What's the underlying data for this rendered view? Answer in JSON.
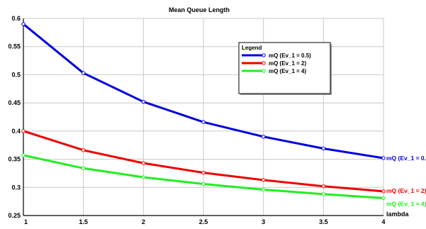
{
  "chart_data": {
    "type": "line",
    "title": "Mean Queue Length",
    "xlabel": "lambda",
    "ylabel": "",
    "xlim": [
      1,
      4
    ],
    "ylim": [
      0.25,
      0.6
    ],
    "x_ticks": [
      "1",
      "1.5",
      "2",
      "2.5",
      "3",
      "3.5",
      "4"
    ],
    "y_ticks": [
      "0.25",
      "0.3",
      "0.35",
      "0.4",
      "0.45",
      "0.5",
      "0.55",
      "0.6"
    ],
    "grid": true,
    "legend": {
      "title": "Legend",
      "position": "top-right"
    },
    "x": [
      1,
      1.5,
      2,
      2.5,
      3,
      3.5,
      4
    ],
    "series": [
      {
        "name": "mQ (Ev_1 = 0.5)",
        "end_label": "mQ (Ev_1 = 0.5",
        "color": "#0000dd",
        "values": [
          0.59,
          0.503,
          0.452,
          0.416,
          0.39,
          0.369,
          0.352
        ]
      },
      {
        "name": "mQ (Ev_1 = 2)",
        "end_label": "mQ (Ev_1 = 2)",
        "color": "#ee0000",
        "values": [
          0.4,
          0.366,
          0.343,
          0.326,
          0.313,
          0.302,
          0.293
        ]
      },
      {
        "name": "mQ (Ev_1 = 4)",
        "end_label": "mQ (Ev_1 = 4)",
        "color": "#22ee22",
        "values": [
          0.357,
          0.334,
          0.318,
          0.306,
          0.296,
          0.288,
          0.281
        ]
      }
    ]
  }
}
